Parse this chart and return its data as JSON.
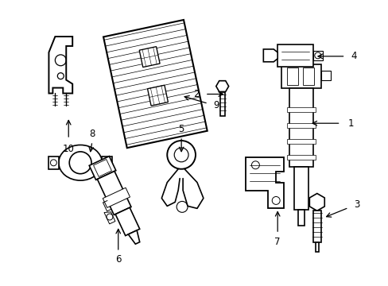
{
  "background_color": "#ffffff",
  "line_color": "#000000",
  "line_width": 1.2,
  "label_fontsize": 8.5,
  "fig_width": 4.89,
  "fig_height": 3.6,
  "dpi": 100
}
